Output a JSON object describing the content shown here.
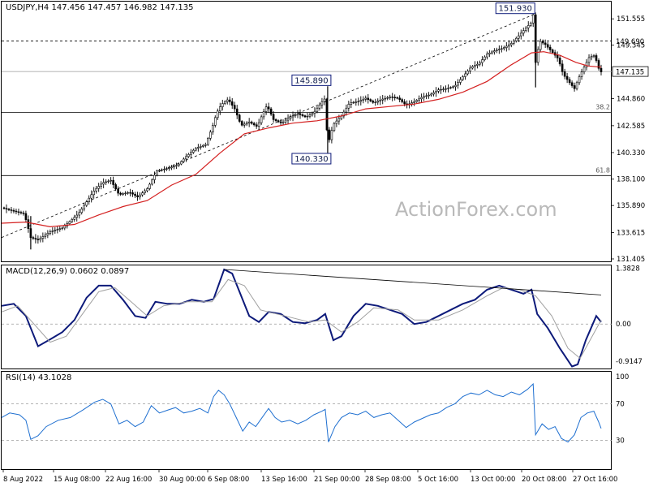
{
  "header": {
    "symbol": "USDJPY,H4",
    "ohlc": "147.456 147.457 146.982 147.135"
  },
  "watermark": "ActionForex.com",
  "colors": {
    "candles": "#000000",
    "moving_average": "#d42020",
    "macd_main": "#0d1a7a",
    "macd_signal": "#a0a0a0",
    "rsi": "#1e6fd0",
    "trendlines": "#000000",
    "labels_box": "#0d1a7a"
  },
  "chart_data": [
    {
      "type": "candlestick",
      "title": "USDJPY,H4",
      "ylim": [
        131.2,
        153.0
      ],
      "y_ticks": [
        "151.555",
        "149.345",
        "147.135",
        "144.860",
        "142.585",
        "140.330",
        "138.100",
        "135.890",
        "133.615",
        "131.405"
      ],
      "x_ticks": [
        "8 Aug 2022",
        "15 Aug 08:00",
        "22 Aug 16:00",
        "30 Aug 00:00",
        "6 Sep 08:00",
        "13 Sep 16:00",
        "21 Sep 00:00",
        "28 Sep 08:00",
        "5 Oct 16:00",
        "13 Oct 00:00",
        "20 Oct 08:00",
        "27 Oct 16:00"
      ],
      "path": [
        [
          0,
          135.7
        ],
        [
          10,
          135.5
        ],
        [
          28,
          135.2
        ],
        [
          36,
          133.2
        ],
        [
          45,
          133.0
        ],
        [
          60,
          133.7
        ],
        [
          75,
          134.0
        ],
        [
          95,
          135.2
        ],
        [
          105,
          136.2
        ],
        [
          115,
          137.2
        ],
        [
          125,
          137.8
        ],
        [
          135,
          138.0
        ],
        [
          145,
          136.8
        ],
        [
          158,
          137.0
        ],
        [
          168,
          136.6
        ],
        [
          180,
          137.3
        ],
        [
          192,
          138.8
        ],
        [
          205,
          139.0
        ],
        [
          218,
          139.3
        ],
        [
          228,
          140.0
        ],
        [
          240,
          140.7
        ],
        [
          252,
          141.0
        ],
        [
          260,
          142.4
        ],
        [
          266,
          143.7
        ],
        [
          272,
          144.4
        ],
        [
          280,
          144.8
        ],
        [
          288,
          144.0
        ],
        [
          296,
          142.6
        ],
        [
          306,
          142.9
        ],
        [
          316,
          142.5
        ],
        [
          322,
          143.5
        ],
        [
          328,
          144.3
        ],
        [
          336,
          143.1
        ],
        [
          346,
          142.8
        ],
        [
          356,
          143.3
        ],
        [
          366,
          143.6
        ],
        [
          376,
          143.3
        ],
        [
          386,
          143.7
        ],
        [
          396,
          144.6
        ],
        [
          400,
          144.9
        ],
        [
          403,
          140.9
        ],
        [
          410,
          142.7
        ],
        [
          420,
          143.4
        ],
        [
          430,
          144.5
        ],
        [
          440,
          144.6
        ],
        [
          450,
          144.9
        ],
        [
          460,
          144.5
        ],
        [
          470,
          144.8
        ],
        [
          480,
          145.0
        ],
        [
          490,
          144.9
        ],
        [
          500,
          144.3
        ],
        [
          510,
          144.6
        ],
        [
          520,
          145.0
        ],
        [
          530,
          145.2
        ],
        [
          540,
          145.6
        ],
        [
          550,
          145.7
        ],
        [
          560,
          145.9
        ],
        [
          570,
          146.7
        ],
        [
          580,
          147.5
        ],
        [
          590,
          147.8
        ],
        [
          600,
          148.6
        ],
        [
          610,
          148.9
        ],
        [
          620,
          149.1
        ],
        [
          630,
          149.5
        ],
        [
          640,
          150.2
        ],
        [
          648,
          150.8
        ],
        [
          654,
          151.2
        ],
        [
          657,
          151.9
        ],
        [
          660,
          147.9
        ],
        [
          665,
          149.7
        ],
        [
          672,
          149.4
        ],
        [
          680,
          148.8
        ],
        [
          688,
          148.2
        ],
        [
          694,
          146.9
        ],
        [
          702,
          146.2
        ],
        [
          708,
          145.7
        ],
        [
          714,
          146.7
        ],
        [
          720,
          147.5
        ],
        [
          726,
          148.3
        ],
        [
          733,
          148.5
        ],
        [
          738,
          147.4
        ],
        [
          741,
          147.1
        ]
      ],
      "moving_average": [
        [
          0,
          134.4
        ],
        [
          30,
          134.5
        ],
        [
          60,
          134.1
        ],
        [
          90,
          134.3
        ],
        [
          120,
          135.1
        ],
        [
          150,
          135.8
        ],
        [
          180,
          136.3
        ],
        [
          210,
          137.6
        ],
        [
          240,
          138.5
        ],
        [
          270,
          140.3
        ],
        [
          300,
          141.9
        ],
        [
          330,
          142.4
        ],
        [
          360,
          142.8
        ],
        [
          390,
          143.0
        ],
        [
          420,
          143.4
        ],
        [
          450,
          144.0
        ],
        [
          480,
          144.2
        ],
        [
          510,
          144.4
        ],
        [
          540,
          144.8
        ],
        [
          570,
          145.4
        ],
        [
          600,
          146.3
        ],
        [
          630,
          147.7
        ],
        [
          655,
          148.7
        ],
        [
          670,
          148.8
        ],
        [
          690,
          148.5
        ],
        [
          710,
          147.9
        ],
        [
          725,
          147.6
        ],
        [
          741,
          147.5
        ]
      ],
      "levels": [
        {
          "value": 149.69,
          "label": "149.690",
          "style": "dashed"
        },
        {
          "value": 147.135,
          "label": "147.135",
          "style": "current"
        },
        {
          "value": 143.7,
          "label": "38.2",
          "style": "solid"
        },
        {
          "value": 138.4,
          "label": "61.8",
          "style": "solid"
        }
      ],
      "annotations": [
        {
          "x": 405,
          "value": 145.89,
          "label": "145.890",
          "position": "above"
        },
        {
          "x": 405,
          "value": 140.33,
          "label": "140.330",
          "position": "below"
        },
        {
          "x": 657,
          "value": 151.93,
          "label": "151.930",
          "position": "above"
        }
      ],
      "trendlines": [
        {
          "x1": 0,
          "y1": 133.2,
          "x2": 657,
          "y2": 151.9
        }
      ]
    },
    {
      "type": "line",
      "title": "MACD(12,26,9) 0.0602 0.0897",
      "ylim": [
        -1.1,
        1.45
      ],
      "y_ticks": [
        {
          "label": "1.3828",
          "value": 1.3828
        },
        {
          "label": "0.00",
          "value": 0.0
        },
        {
          "label": "-0.9147",
          "value": -0.9147
        }
      ],
      "series": [
        {
          "role": "main",
          "points": [
            [
              0,
              0.45
            ],
            [
              15,
              0.5
            ],
            [
              30,
              0.2
            ],
            [
              45,
              -0.55
            ],
            [
              60,
              -0.38
            ],
            [
              75,
              -0.2
            ],
            [
              90,
              0.1
            ],
            [
              105,
              0.65
            ],
            [
              120,
              0.95
            ],
            [
              135,
              0.95
            ],
            [
              150,
              0.6
            ],
            [
              165,
              0.2
            ],
            [
              178,
              0.15
            ],
            [
              190,
              0.55
            ],
            [
              205,
              0.5
            ],
            [
              220,
              0.5
            ],
            [
              235,
              0.6
            ],
            [
              250,
              0.55
            ],
            [
              262,
              0.62
            ],
            [
              275,
              1.35
            ],
            [
              285,
              1.25
            ],
            [
              296,
              0.7
            ],
            [
              306,
              0.2
            ],
            [
              318,
              0.05
            ],
            [
              330,
              0.3
            ],
            [
              345,
              0.25
            ],
            [
              360,
              0.05
            ],
            [
              375,
              0.02
            ],
            [
              390,
              0.1
            ],
            [
              400,
              0.25
            ],
            [
              410,
              -0.4
            ],
            [
              420,
              -0.3
            ],
            [
              435,
              0.2
            ],
            [
              450,
              0.5
            ],
            [
              465,
              0.45
            ],
            [
              480,
              0.35
            ],
            [
              495,
              0.25
            ],
            [
              510,
              0.0
            ],
            [
              525,
              0.05
            ],
            [
              540,
              0.2
            ],
            [
              555,
              0.35
            ],
            [
              570,
              0.5
            ],
            [
              585,
              0.6
            ],
            [
              600,
              0.85
            ],
            [
              615,
              0.95
            ],
            [
              630,
              0.85
            ],
            [
              645,
              0.75
            ],
            [
              655,
              0.85
            ],
            [
              662,
              0.25
            ],
            [
              675,
              -0.1
            ],
            [
              690,
              -0.6
            ],
            [
              705,
              -1.05
            ],
            [
              712,
              -1.0
            ],
            [
              722,
              -0.4
            ],
            [
              735,
              0.2
            ],
            [
              741,
              0.05
            ]
          ]
        },
        {
          "role": "signal",
          "points": [
            [
              0,
              0.3
            ],
            [
              20,
              0.45
            ],
            [
              40,
              0.0
            ],
            [
              60,
              -0.45
            ],
            [
              80,
              -0.3
            ],
            [
              100,
              0.25
            ],
            [
              120,
              0.8
            ],
            [
              140,
              0.9
            ],
            [
              160,
              0.55
            ],
            [
              180,
              0.2
            ],
            [
              200,
              0.45
            ],
            [
              230,
              0.55
            ],
            [
              260,
              0.55
            ],
            [
              280,
              1.1
            ],
            [
              300,
              0.95
            ],
            [
              320,
              0.35
            ],
            [
              340,
              0.25
            ],
            [
              360,
              0.15
            ],
            [
              380,
              0.05
            ],
            [
              400,
              0.1
            ],
            [
              420,
              -0.2
            ],
            [
              440,
              0.05
            ],
            [
              460,
              0.4
            ],
            [
              490,
              0.35
            ],
            [
              510,
              0.1
            ],
            [
              540,
              0.1
            ],
            [
              570,
              0.35
            ],
            [
              600,
              0.7
            ],
            [
              620,
              0.9
            ],
            [
              640,
              0.85
            ],
            [
              660,
              0.7
            ],
            [
              680,
              0.2
            ],
            [
              700,
              -0.6
            ],
            [
              715,
              -0.85
            ],
            [
              730,
              -0.3
            ],
            [
              741,
              0.1
            ]
          ]
        }
      ],
      "trendline": {
        "x1": 275,
        "y1": 1.35,
        "x2": 741,
        "y2": 0.72
      }
    },
    {
      "type": "line",
      "title": "RSI(14) 43.1028",
      "ylim": [
        0,
        100
      ],
      "y_ticks": [
        {
          "label": "100",
          "value": 100
        },
        {
          "label": "70",
          "value": 70
        },
        {
          "label": "30",
          "value": 30
        }
      ],
      "levels": [
        70,
        30
      ],
      "points": [
        [
          0,
          55
        ],
        [
          10,
          60
        ],
        [
          22,
          58
        ],
        [
          30,
          52
        ],
        [
          36,
          31
        ],
        [
          45,
          35
        ],
        [
          55,
          45
        ],
        [
          70,
          52
        ],
        [
          85,
          55
        ],
        [
          100,
          63
        ],
        [
          115,
          72
        ],
        [
          125,
          75
        ],
        [
          135,
          70
        ],
        [
          145,
          48
        ],
        [
          155,
          52
        ],
        [
          165,
          45
        ],
        [
          175,
          50
        ],
        [
          185,
          68
        ],
        [
          195,
          60
        ],
        [
          205,
          63
        ],
        [
          215,
          66
        ],
        [
          225,
          60
        ],
        [
          235,
          62
        ],
        [
          245,
          65
        ],
        [
          255,
          60
        ],
        [
          262,
          78
        ],
        [
          268,
          85
        ],
        [
          275,
          80
        ],
        [
          282,
          70
        ],
        [
          290,
          55
        ],
        [
          298,
          40
        ],
        [
          306,
          50
        ],
        [
          314,
          45
        ],
        [
          322,
          55
        ],
        [
          330,
          65
        ],
        [
          338,
          55
        ],
        [
          346,
          50
        ],
        [
          356,
          52
        ],
        [
          366,
          48
        ],
        [
          376,
          52
        ],
        [
          386,
          58
        ],
        [
          396,
          62
        ],
        [
          400,
          64
        ],
        [
          404,
          28
        ],
        [
          412,
          45
        ],
        [
          420,
          55
        ],
        [
          430,
          60
        ],
        [
          440,
          58
        ],
        [
          450,
          62
        ],
        [
          460,
          55
        ],
        [
          470,
          58
        ],
        [
          480,
          60
        ],
        [
          490,
          52
        ],
        [
          500,
          44
        ],
        [
          510,
          50
        ],
        [
          520,
          54
        ],
        [
          530,
          58
        ],
        [
          540,
          60
        ],
        [
          550,
          66
        ],
        [
          560,
          70
        ],
        [
          570,
          78
        ],
        [
          580,
          82
        ],
        [
          590,
          80
        ],
        [
          600,
          85
        ],
        [
          610,
          80
        ],
        [
          620,
          78
        ],
        [
          630,
          83
        ],
        [
          640,
          80
        ],
        [
          650,
          86
        ],
        [
          657,
          92
        ],
        [
          660,
          36
        ],
        [
          668,
          48
        ],
        [
          676,
          42
        ],
        [
          684,
          45
        ],
        [
          692,
          32
        ],
        [
          700,
          28
        ],
        [
          708,
          36
        ],
        [
          716,
          55
        ],
        [
          724,
          60
        ],
        [
          732,
          62
        ],
        [
          738,
          50
        ],
        [
          741,
          43
        ]
      ]
    }
  ]
}
